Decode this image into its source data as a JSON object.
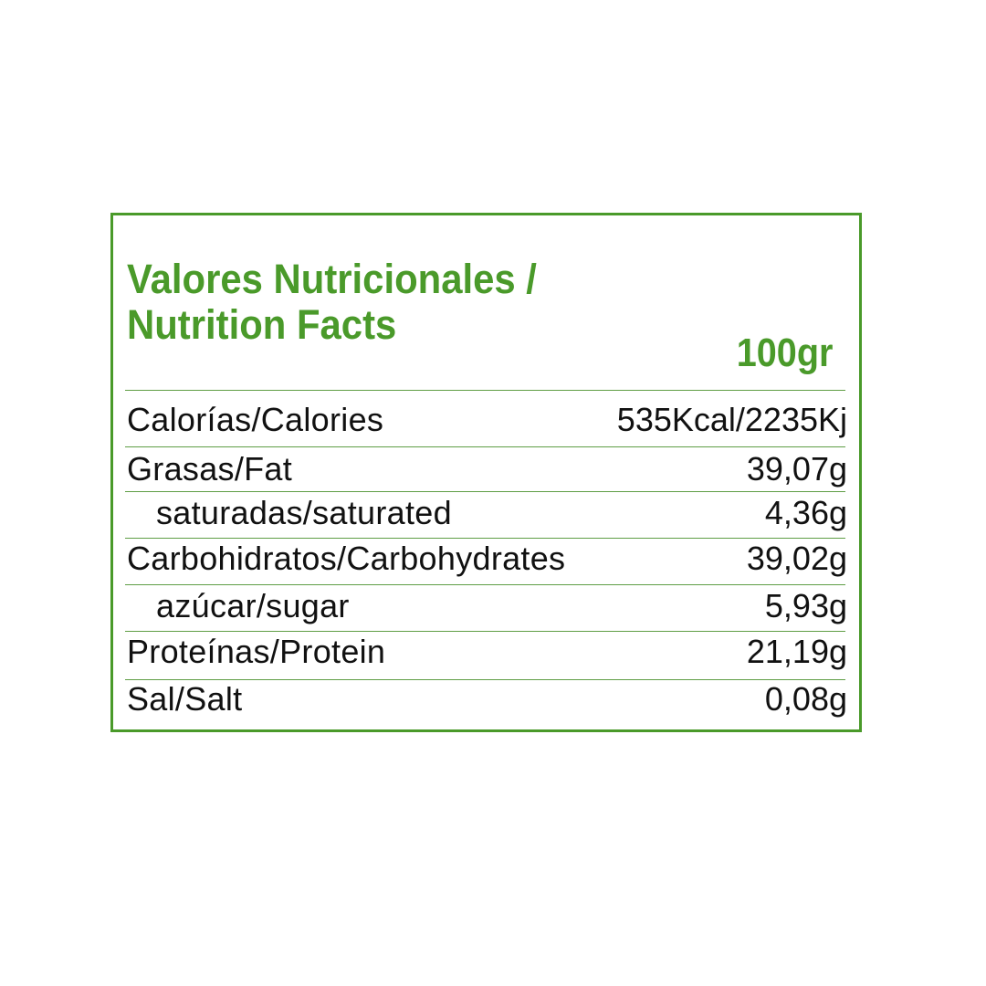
{
  "title_line1": "Valores Nutricionales /",
  "title_line2": "Nutrition Facts",
  "per_amount": "100gr",
  "accent_color": "#4a9a2a",
  "rows": [
    {
      "label": "Calorías/Calories",
      "value": "535Kcal/2235Kj"
    },
    {
      "label": "Grasas/Fat",
      "value": "39,07g"
    },
    {
      "label": "saturadas/saturated",
      "value": "4,36g"
    },
    {
      "label": "Carbohidratos/Carbohydrates",
      "value": "39,02g"
    },
    {
      "label": "azúcar/sugar",
      "value": "5,93g"
    },
    {
      "label": "Proteínas/Protein",
      "value": "21,19g"
    },
    {
      "label": "Sal/Salt",
      "value": "0,08g"
    }
  ]
}
